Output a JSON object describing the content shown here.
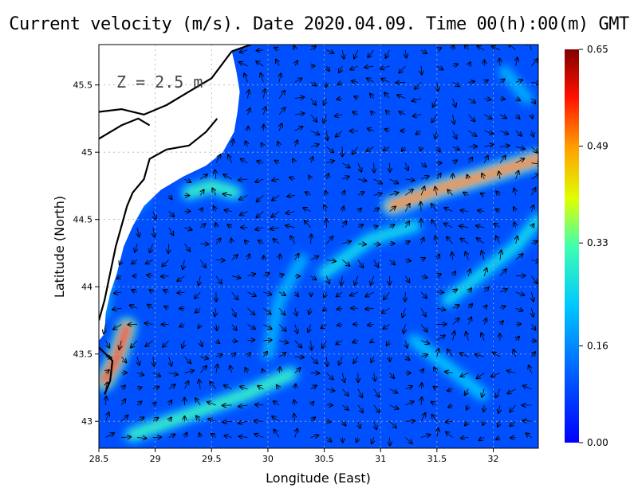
{
  "title": "Current velocity (m/s). Date 2020.04.09. Time 00(h):00(m) GMT",
  "depth_label": "Z = 2.5 m",
  "chart_data": {
    "type": "heatmap",
    "title": "Current velocity (m/s). Date 2020.04.09. Time 00(h):00(m) GMT",
    "xlabel": "Longitude (East)",
    "ylabel": "Latitude (North)",
    "xlim": [
      28.5,
      32.4
    ],
    "ylim": [
      42.8,
      45.8
    ],
    "xticks": [
      "28.5",
      "29",
      "29.5",
      "30",
      "30.5",
      "31",
      "31.5",
      "32"
    ],
    "xtick_values": [
      28.5,
      29,
      29.5,
      30,
      30.5,
      31,
      31.5,
      32
    ],
    "yticks": [
      "43",
      "43.5",
      "44",
      "44.5",
      "45",
      "45.5"
    ],
    "ytick_values": [
      43,
      43.5,
      44,
      44.5,
      45,
      45.5
    ],
    "grid": true,
    "colorbar": {
      "ticks": [
        "0.65",
        "0.49",
        "0.33",
        "0.16",
        "0.00"
      ],
      "tick_values": [
        0.65,
        0.49,
        0.33,
        0.16,
        0.0
      ],
      "min": 0.0,
      "max": 0.65,
      "colors": [
        "#0000ff",
        "#0080ff",
        "#00ffff",
        "#80ff80",
        "#ffff00",
        "#ff8000",
        "#ff0000",
        "#800000"
      ]
    },
    "background_color": "#0050ff",
    "land_color": "#ffffff",
    "jets": [
      {
        "name": "",
        "points": [
          [
            31.1,
            44.6
          ],
          [
            31.5,
            44.72
          ],
          [
            31.9,
            44.82
          ],
          [
            32.4,
            44.95
          ]
        ],
        "speed": 0.5
      },
      {
        "name": "",
        "points": [
          [
            28.55,
            43.3
          ],
          [
            28.65,
            43.45
          ],
          [
            28.75,
            43.7
          ]
        ],
        "speed": 0.55
      },
      {
        "name": "",
        "points": [
          [
            28.8,
            42.9
          ],
          [
            29.3,
            43.05
          ],
          [
            29.8,
            43.2
          ],
          [
            30.2,
            43.35
          ]
        ],
        "speed": 0.3
      },
      {
        "name": "",
        "points": [
          [
            29.3,
            44.7
          ],
          [
            29.5,
            44.75
          ],
          [
            29.7,
            44.7
          ]
        ],
        "speed": 0.3
      },
      {
        "name": "",
        "points": [
          [
            30.5,
            44.1
          ],
          [
            30.9,
            44.35
          ],
          [
            31.3,
            44.45
          ]
        ],
        "speed": 0.25
      },
      {
        "name": "",
        "points": [
          [
            31.6,
            43.9
          ],
          [
            31.9,
            44.1
          ],
          [
            32.2,
            44.3
          ],
          [
            32.4,
            44.5
          ]
        ],
        "speed": 0.25
      },
      {
        "name": "",
        "points": [
          [
            31.3,
            43.6
          ],
          [
            31.6,
            43.4
          ],
          [
            31.9,
            43.2
          ]
        ],
        "speed": 0.22
      },
      {
        "name": "",
        "points": [
          [
            30.0,
            43.5
          ],
          [
            30.1,
            43.9
          ],
          [
            30.3,
            44.2
          ]
        ],
        "speed": 0.2
      },
      {
        "name": "",
        "points": [
          [
            28.55,
            43.8
          ],
          [
            28.6,
            44.2
          ],
          [
            28.7,
            44.5
          ],
          [
            28.9,
            44.65
          ]
        ],
        "speed": 0.18
      },
      {
        "name": "",
        "points": [
          [
            32.1,
            45.6
          ],
          [
            32.3,
            45.4
          ]
        ],
        "speed": 0.2
      }
    ],
    "coastline": [
      [
        [
          29.68,
          45.75
        ],
        [
          29.85,
          45.8
        ]
      ],
      [
        [
          28.5,
          45.3
        ],
        [
          28.7,
          45.32
        ],
        [
          28.9,
          45.28
        ],
        [
          29.1,
          45.35
        ],
        [
          29.3,
          45.45
        ],
        [
          29.5,
          45.55
        ],
        [
          29.68,
          45.75
        ]
      ],
      [
        [
          28.5,
          45.1
        ],
        [
          28.7,
          45.2
        ],
        [
          28.85,
          45.25
        ],
        [
          28.95,
          45.2
        ]
      ],
      [
        [
          29.55,
          45.25
        ],
        [
          29.45,
          45.15
        ],
        [
          29.3,
          45.05
        ],
        [
          29.1,
          45.02
        ]
      ],
      [
        [
          29.1,
          45.02
        ],
        [
          28.95,
          44.95
        ],
        [
          28.9,
          44.8
        ],
        [
          28.8,
          44.7
        ],
        [
          28.75,
          44.6
        ],
        [
          28.7,
          44.45
        ],
        [
          28.65,
          44.3
        ],
        [
          28.6,
          44.1
        ],
        [
          28.55,
          43.9
        ],
        [
          28.5,
          43.75
        ]
      ],
      [
        [
          28.5,
          43.55
        ],
        [
          28.62,
          43.45
        ],
        [
          28.6,
          43.3
        ],
        [
          28.55,
          43.2
        ]
      ]
    ]
  }
}
